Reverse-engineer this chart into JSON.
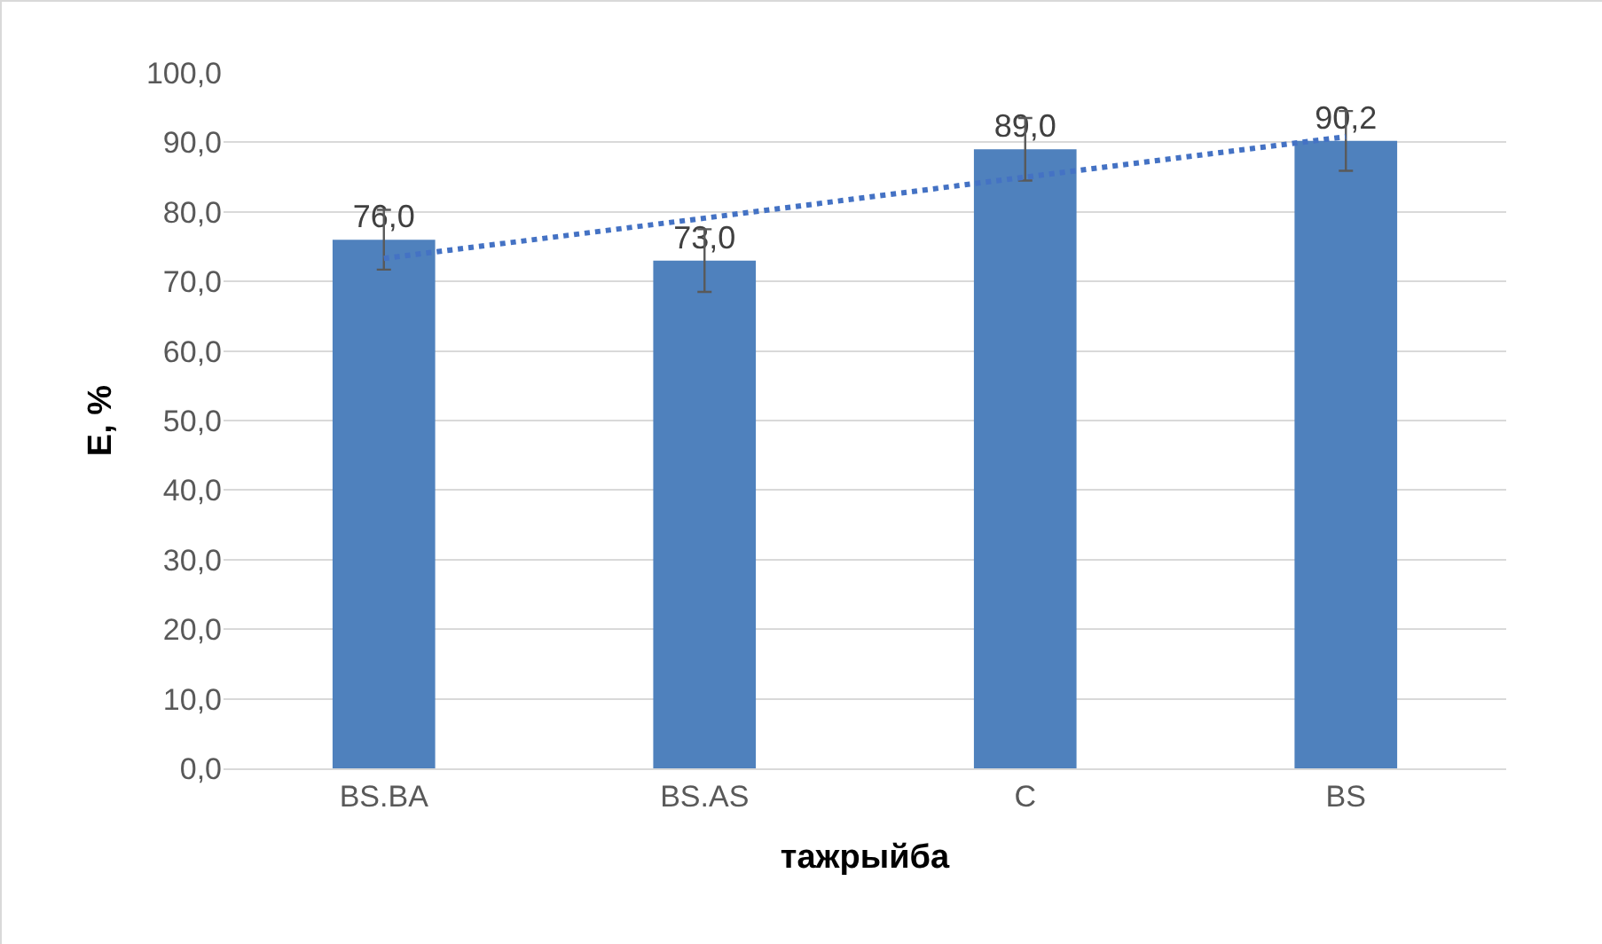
{
  "chart_data": {
    "type": "bar",
    "xlabel": "тажрыйба",
    "ylabel": "E, %",
    "categories": [
      "BS.BA",
      "BS.AS",
      "C",
      "BS"
    ],
    "series": [
      {
        "color": "#4f81bd",
        "values": [
          76.0,
          73.0,
          89.0,
          90.2
        ],
        "errors": [
          4.3,
          4.5,
          4.5,
          4.3
        ],
        "value_labels": [
          "76,0",
          "73,0",
          "89,0",
          "90,2"
        ]
      },
      {
        "type": "line",
        "color": "#4472c4",
        "line_style": "dotted",
        "x": [
          "BS.BA",
          "BS.AS",
          "C",
          "BS"
        ],
        "values": [
          73.3,
          79.1,
          85.0,
          90.8
        ]
      }
    ],
    "ylim": [
      0,
      100
    ],
    "yticks": [
      {
        "value": 0,
        "label": "0,0"
      },
      {
        "value": 10,
        "label": "10,0"
      },
      {
        "value": 20,
        "label": "20,0"
      },
      {
        "value": 30,
        "label": "30,0"
      },
      {
        "value": 40,
        "label": "40,0"
      },
      {
        "value": 50,
        "label": "50,0"
      },
      {
        "value": 60,
        "label": "60,0"
      },
      {
        "value": 70,
        "label": "70,0"
      },
      {
        "value": 80,
        "label": "80,0"
      },
      {
        "value": 90,
        "label": "90,0"
      },
      {
        "value": 100,
        "label": "100,0"
      }
    ],
    "grid": "y"
  }
}
